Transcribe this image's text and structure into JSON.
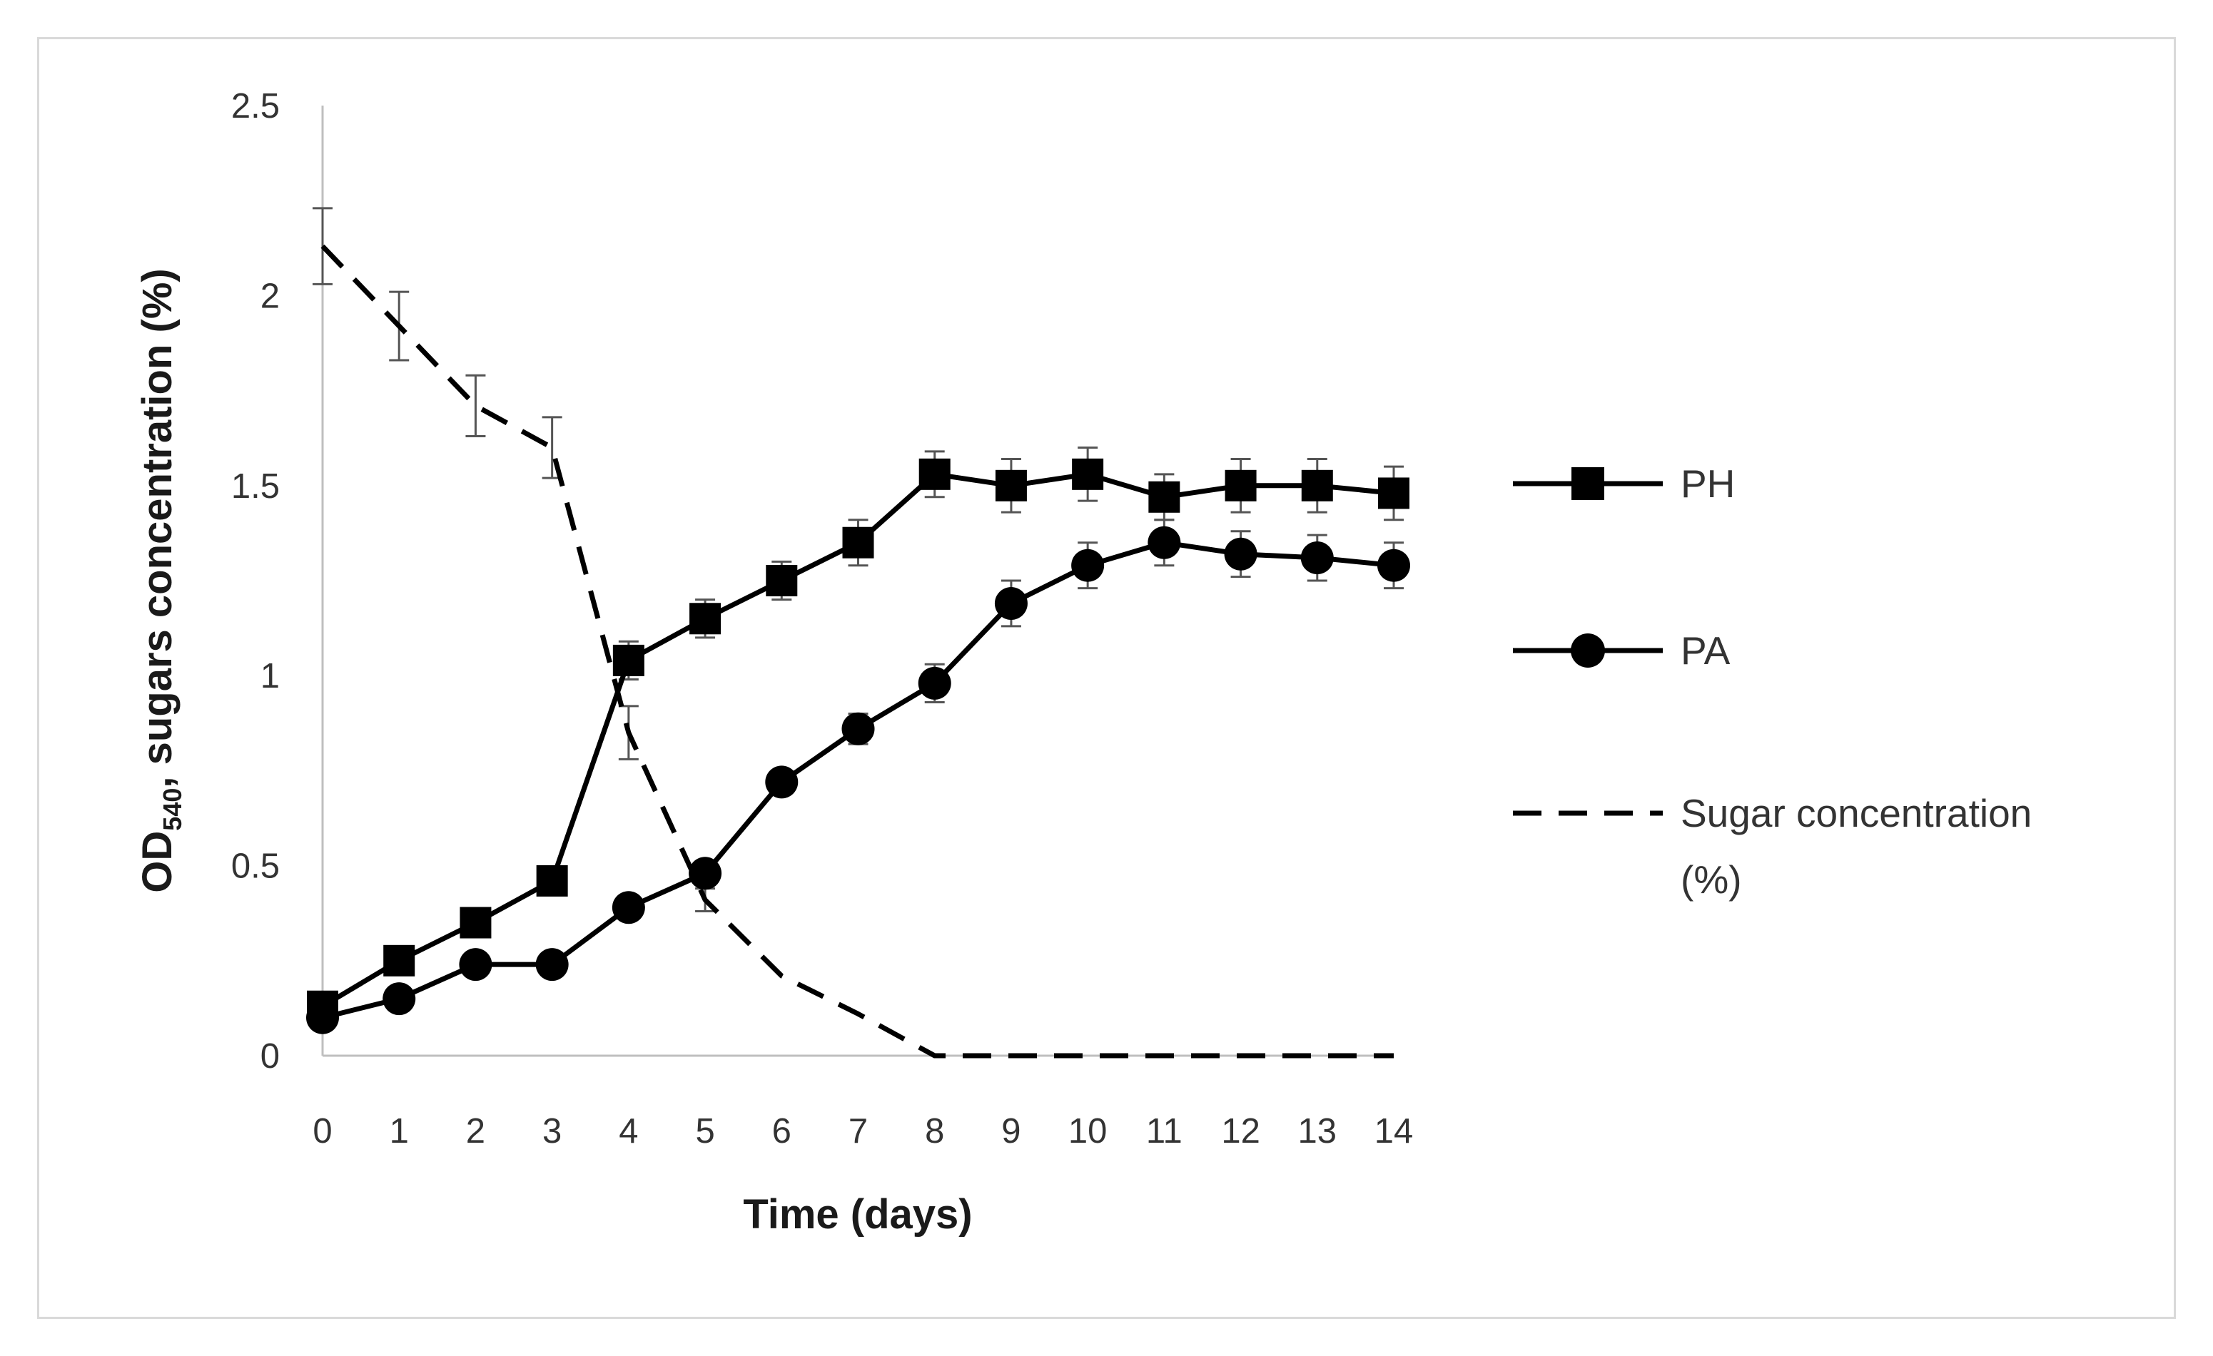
{
  "chart_data": {
    "type": "line",
    "title": "",
    "xlabel": "Time (days)",
    "ylabel_main": "OD",
    "ylabel_sub": "540",
    "ylabel_rest": ", sugars concentration (%)",
    "x": [
      0,
      1,
      2,
      3,
      4,
      5,
      6,
      7,
      8,
      9,
      10,
      11,
      12,
      13,
      14
    ],
    "xlim": [
      0,
      14
    ],
    "ylim": [
      0,
      2.5
    ],
    "yticks": [
      "0",
      "0.5",
      "1",
      "1.5",
      "2",
      "2.5"
    ],
    "xticks": [
      "0",
      "1",
      "2",
      "3",
      "4",
      "5",
      "6",
      "7",
      "8",
      "9",
      "10",
      "11",
      "12",
      "13",
      "14"
    ],
    "grid": false,
    "legend_position": "right",
    "series": [
      {
        "name": "PH",
        "marker": "square",
        "dash": "solid",
        "values": [
          0.13,
          0.25,
          0.35,
          0.46,
          1.04,
          1.15,
          1.25,
          1.35,
          1.53,
          1.5,
          1.53,
          1.47,
          1.5,
          1.5,
          1.48
        ],
        "errors": [
          0,
          0,
          0,
          0,
          0.05,
          0.05,
          0.05,
          0.06,
          0.06,
          0.07,
          0.07,
          0.06,
          0.07,
          0.07,
          0.07
        ]
      },
      {
        "name": "PA",
        "marker": "circle",
        "dash": "solid",
        "values": [
          0.1,
          0.15,
          0.24,
          0.24,
          0.39,
          0.48,
          0.72,
          0.86,
          0.98,
          1.19,
          1.29,
          1.35,
          1.32,
          1.31,
          1.29
        ],
        "errors": [
          0,
          0,
          0,
          0,
          0,
          0,
          0,
          0.04,
          0.05,
          0.06,
          0.06,
          0.06,
          0.06,
          0.06,
          0.06
        ]
      },
      {
        "name_line1": "Sugar concentration",
        "name_line2": "(%)",
        "marker": "none",
        "dash": "dashed",
        "values": [
          2.13,
          1.92,
          1.71,
          1.6,
          0.85,
          0.41,
          0.21,
          0.11,
          0.0,
          0.0,
          0.0,
          0.0,
          0.0,
          0.0,
          0.0
        ],
        "errors": [
          0.1,
          0.09,
          0.08,
          0.08,
          0.07,
          0.03,
          0.0,
          0.0,
          0.0,
          0.0,
          0.0,
          0.0,
          0.0,
          0.0,
          0.0
        ]
      }
    ]
  }
}
